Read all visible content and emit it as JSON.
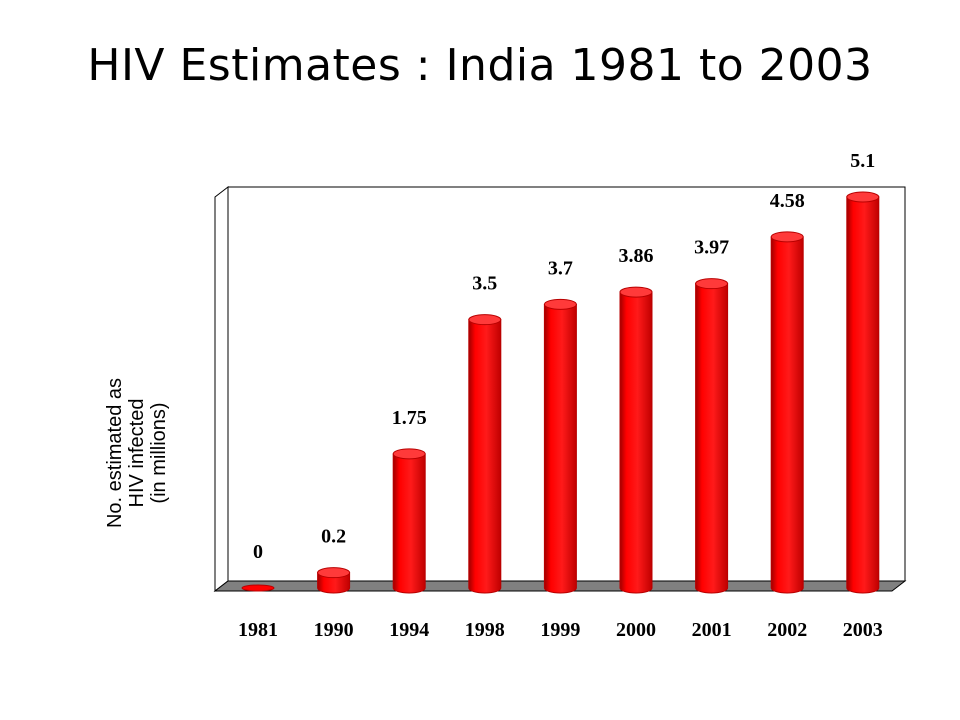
{
  "slide": {
    "title": "HIV Estimates : India 1981 to 2003"
  },
  "chart_data": {
    "type": "bar",
    "title": "HIV Estimates : India 1981 to 2003",
    "categories": [
      "1981",
      "1990",
      "1994",
      "1998",
      "1999",
      "2000",
      "2001",
      "2002",
      "2003"
    ],
    "series": [
      {
        "values": [
          0,
          0.2,
          1.75,
          3.5,
          3.7,
          3.86,
          3.97,
          4.58,
          5.1
        ]
      }
    ],
    "data_labels": [
      "0",
      "0.2",
      "1.75",
      "3.5",
      "3.7",
      "3.86",
      "3.97",
      "4.58",
      "5.1"
    ],
    "xlabel": "",
    "ylabel_lines": [
      "No. estimated as",
      "HIV infected",
      "(in millions)"
    ],
    "ylim": [
      0,
      5.1
    ],
    "grid": false,
    "legend": "none",
    "bar_style": "3d-cylinder",
    "colors": {
      "bar": "#ff0000",
      "bar_dark": "#b80000",
      "bar_top": "#ff3a3a",
      "floor": "#808080",
      "wall": "#ffffff",
      "outline": "#000000"
    }
  }
}
